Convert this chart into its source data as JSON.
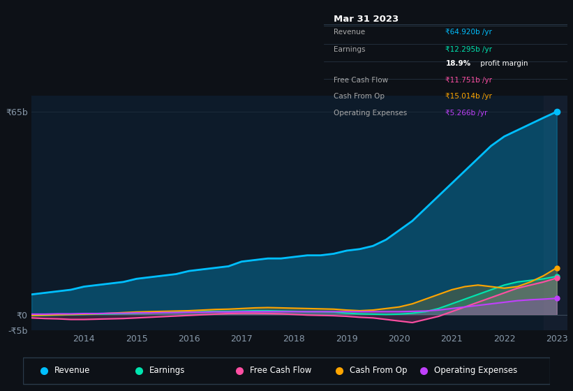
{
  "background_color": "#0d1117",
  "plot_bg_color": "#0d1b2a",
  "title": "Mar 31 2023",
  "years": [
    2013,
    2013.25,
    2013.5,
    2013.75,
    2014,
    2014.25,
    2014.5,
    2014.75,
    2015,
    2015.25,
    2015.5,
    2015.75,
    2016,
    2016.25,
    2016.5,
    2016.75,
    2017,
    2017.25,
    2017.5,
    2017.75,
    2018,
    2018.25,
    2018.5,
    2018.75,
    2019,
    2019.25,
    2019.5,
    2019.75,
    2020,
    2020.25,
    2020.5,
    2020.75,
    2021,
    2021.25,
    2021.5,
    2021.75,
    2022,
    2022.25,
    2022.5,
    2022.75,
    2023
  ],
  "revenue": [
    6.5,
    7.0,
    7.5,
    8.0,
    9.0,
    9.5,
    10.0,
    10.5,
    11.5,
    12.0,
    12.5,
    13.0,
    14.0,
    14.5,
    15.0,
    15.5,
    17.0,
    17.5,
    18.0,
    18.0,
    18.5,
    19.0,
    19.0,
    19.5,
    20.5,
    21.0,
    22.0,
    24.0,
    27.0,
    30.0,
    34.0,
    38.0,
    42.0,
    46.0,
    50.0,
    54.0,
    57.0,
    59.0,
    61.0,
    63.0,
    64.92
  ],
  "earnings": [
    -0.3,
    -0.2,
    -0.1,
    0.0,
    0.1,
    0.2,
    0.3,
    0.4,
    0.5,
    0.6,
    0.7,
    0.8,
    0.9,
    1.0,
    1.1,
    1.1,
    1.2,
    1.3,
    1.3,
    1.2,
    1.1,
    1.0,
    1.0,
    0.9,
    0.5,
    0.3,
    0.2,
    0.1,
    0.2,
    0.5,
    1.0,
    2.0,
    3.5,
    5.0,
    6.5,
    8.0,
    9.5,
    10.5,
    11.0,
    11.5,
    12.295
  ],
  "free_cash_flow": [
    -1.0,
    -1.2,
    -1.3,
    -1.5,
    -1.5,
    -1.4,
    -1.3,
    -1.2,
    -1.0,
    -0.8,
    -0.6,
    -0.4,
    -0.2,
    0.0,
    0.2,
    0.4,
    0.5,
    0.5,
    0.4,
    0.3,
    0.1,
    -0.1,
    -0.2,
    -0.3,
    -0.5,
    -0.8,
    -1.0,
    -1.5,
    -2.0,
    -2.5,
    -1.5,
    -0.5,
    1.0,
    2.5,
    4.0,
    5.5,
    7.0,
    8.5,
    9.5,
    10.5,
    11.751
  ],
  "cash_from_op": [
    -0.2,
    -0.1,
    0.0,
    0.1,
    0.2,
    0.3,
    0.5,
    0.7,
    0.9,
    1.0,
    1.1,
    1.2,
    1.3,
    1.5,
    1.7,
    1.8,
    2.0,
    2.2,
    2.3,
    2.2,
    2.1,
    2.0,
    1.9,
    1.8,
    1.5,
    1.3,
    1.5,
    2.0,
    2.5,
    3.5,
    5.0,
    6.5,
    8.0,
    9.0,
    9.5,
    9.0,
    8.5,
    9.0,
    10.5,
    12.5,
    15.014
  ],
  "operating_expenses": [
    0.2,
    0.2,
    0.3,
    0.3,
    0.4,
    0.4,
    0.5,
    0.5,
    0.6,
    0.6,
    0.7,
    0.7,
    0.8,
    0.8,
    0.9,
    0.9,
    1.0,
    1.0,
    1.0,
    1.0,
    1.0,
    1.0,
    1.0,
    1.0,
    1.0,
    1.0,
    1.0,
    1.0,
    1.0,
    1.1,
    1.2,
    1.5,
    2.0,
    2.5,
    3.0,
    3.5,
    4.0,
    4.5,
    4.8,
    5.0,
    5.266
  ],
  "revenue_color": "#00bfff",
  "earnings_color": "#00e5b0",
  "free_cash_flow_color": "#ff4fa3",
  "cash_from_op_color": "#ffa500",
  "operating_expenses_color": "#c040fb",
  "ylim": [
    -5,
    70
  ],
  "grid_color": "#1e2d3d",
  "legend_items": [
    "Revenue",
    "Earnings",
    "Free Cash Flow",
    "Cash From Op",
    "Operating Expenses"
  ],
  "legend_colors": [
    "#00bfff",
    "#00e5b0",
    "#ff4fa3",
    "#ffa500",
    "#c040fb"
  ],
  "tooltip_bg": "#0a0f14",
  "tooltip_border": "#2a3a4a",
  "tooltip_title": "Mar 31 2023",
  "tooltip_rows": [
    {
      "label": "Revenue",
      "value": "₹64.920b /yr",
      "color": "#00bfff",
      "divider": true
    },
    {
      "label": "Earnings",
      "value": "₹12.295b /yr",
      "color": "#00e5b0",
      "divider": false
    },
    {
      "label": "",
      "value": "18.9% profit margin",
      "color": "white",
      "divider": true
    },
    {
      "label": "Free Cash Flow",
      "value": "₹11.751b /yr",
      "color": "#ff4fa3",
      "divider": true
    },
    {
      "label": "Cash From Op",
      "value": "₹15.014b /yr",
      "color": "#ffa500",
      "divider": true
    },
    {
      "label": "Operating Expenses",
      "value": "₹5.266b /yr",
      "color": "#c040fb",
      "divider": false
    }
  ]
}
